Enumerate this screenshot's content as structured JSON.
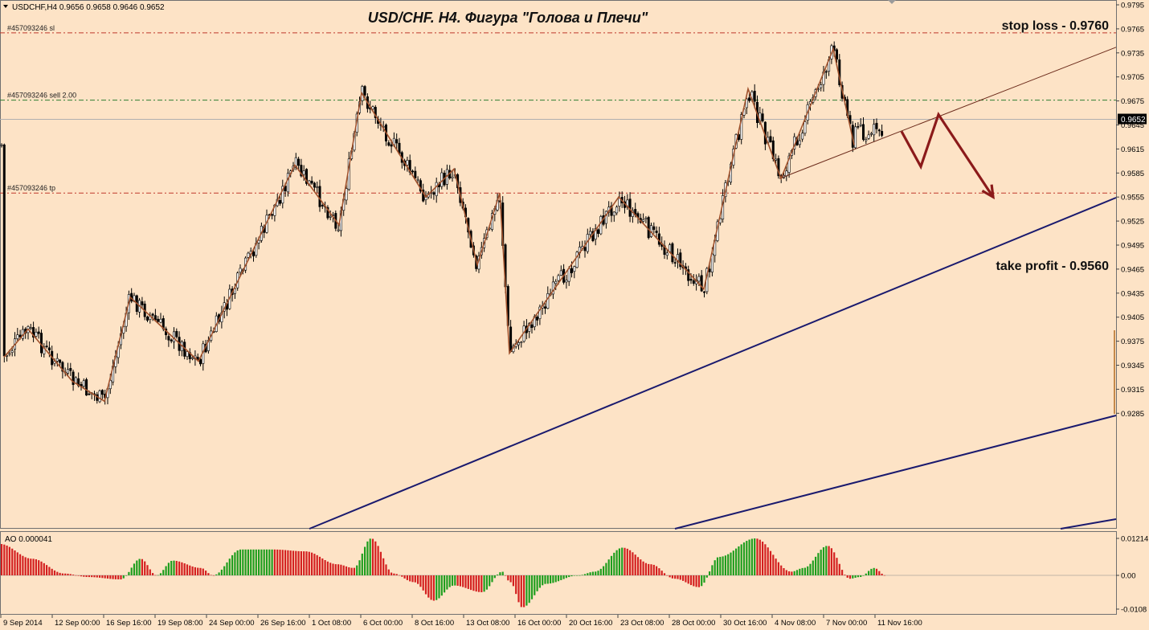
{
  "header": {
    "symbol_info": "USDCHF,H4  0.9656 0.9658 0.9646 0.9652",
    "chart_title": "USD/CHF. H4. Фигура \"Голова и Плечи\""
  },
  "annotations": {
    "stop_loss": "stop loss - 0.9760",
    "take_profit": "take profit - 0.9560"
  },
  "order_lines": [
    {
      "label": "#457093246 sl",
      "price": 0.976,
      "color": "#c0392b"
    },
    {
      "label": "#457093246 sell 2.00",
      "price": 0.9676,
      "color": "#2e7d32"
    },
    {
      "label": "#457093246 tp",
      "price": 0.956,
      "color": "#c0392b"
    }
  ],
  "current_price": {
    "label": "0.9652",
    "value": 0.9652
  },
  "indicator": {
    "label": "AO 0.000041",
    "ticks": [
      "0.01214",
      "0.00",
      "-0.0108"
    ]
  },
  "colors": {
    "background": "#fde3c6",
    "zigzag": "#a0522d",
    "trendline": "#1a1a6e",
    "arrow": "#8b1a1a",
    "ao_up": "#1e9e1e",
    "ao_down": "#d42020"
  },
  "chart_data": {
    "type": "candlestick",
    "title": "USD/CHF. H4. Фигура \"Голова и Плечи\"",
    "ylim": [
      0.927,
      0.98
    ],
    "y_ticks": [
      "0.9795",
      "0.9765",
      "0.9735",
      "0.9705",
      "0.9675",
      "0.9645",
      "0.9615",
      "0.9585",
      "0.9555",
      "0.9525",
      "0.9495",
      "0.9465",
      "0.9435",
      "0.9405",
      "0.9375",
      "0.9345",
      "0.9315",
      "0.9285"
    ],
    "x_ticks": [
      "9 Sep 2014",
      "12 Sep 00:00",
      "16 Sep 16:00",
      "19 Sep 08:00",
      "24 Sep 00:00",
      "26 Sep 16:00",
      "1 Oct 08:00",
      "6 Oct 00:00",
      "8 Oct 16:00",
      "13 Oct 08:00",
      "16 Oct 00:00",
      "20 Oct 16:00",
      "23 Oct 08:00",
      "28 Oct 00:00",
      "30 Oct 16:00",
      "4 Nov 08:00",
      "7 Nov 00:00",
      "11 Nov 16:00"
    ],
    "zigzag": [
      0.9355,
      0.939,
      0.9325,
      0.93,
      0.943,
      0.935,
      0.9595,
      0.952,
      0.9685,
      0.9555,
      0.959,
      0.947,
      0.956,
      0.936,
      0.9555,
      0.944,
      0.969,
      0.9578,
      0.974,
      0.962
    ],
    "neckline": [
      0.9578,
      0.9742
    ],
    "projection": [
      0.9637,
      0.9593,
      0.9658,
      0.9555
    ]
  }
}
